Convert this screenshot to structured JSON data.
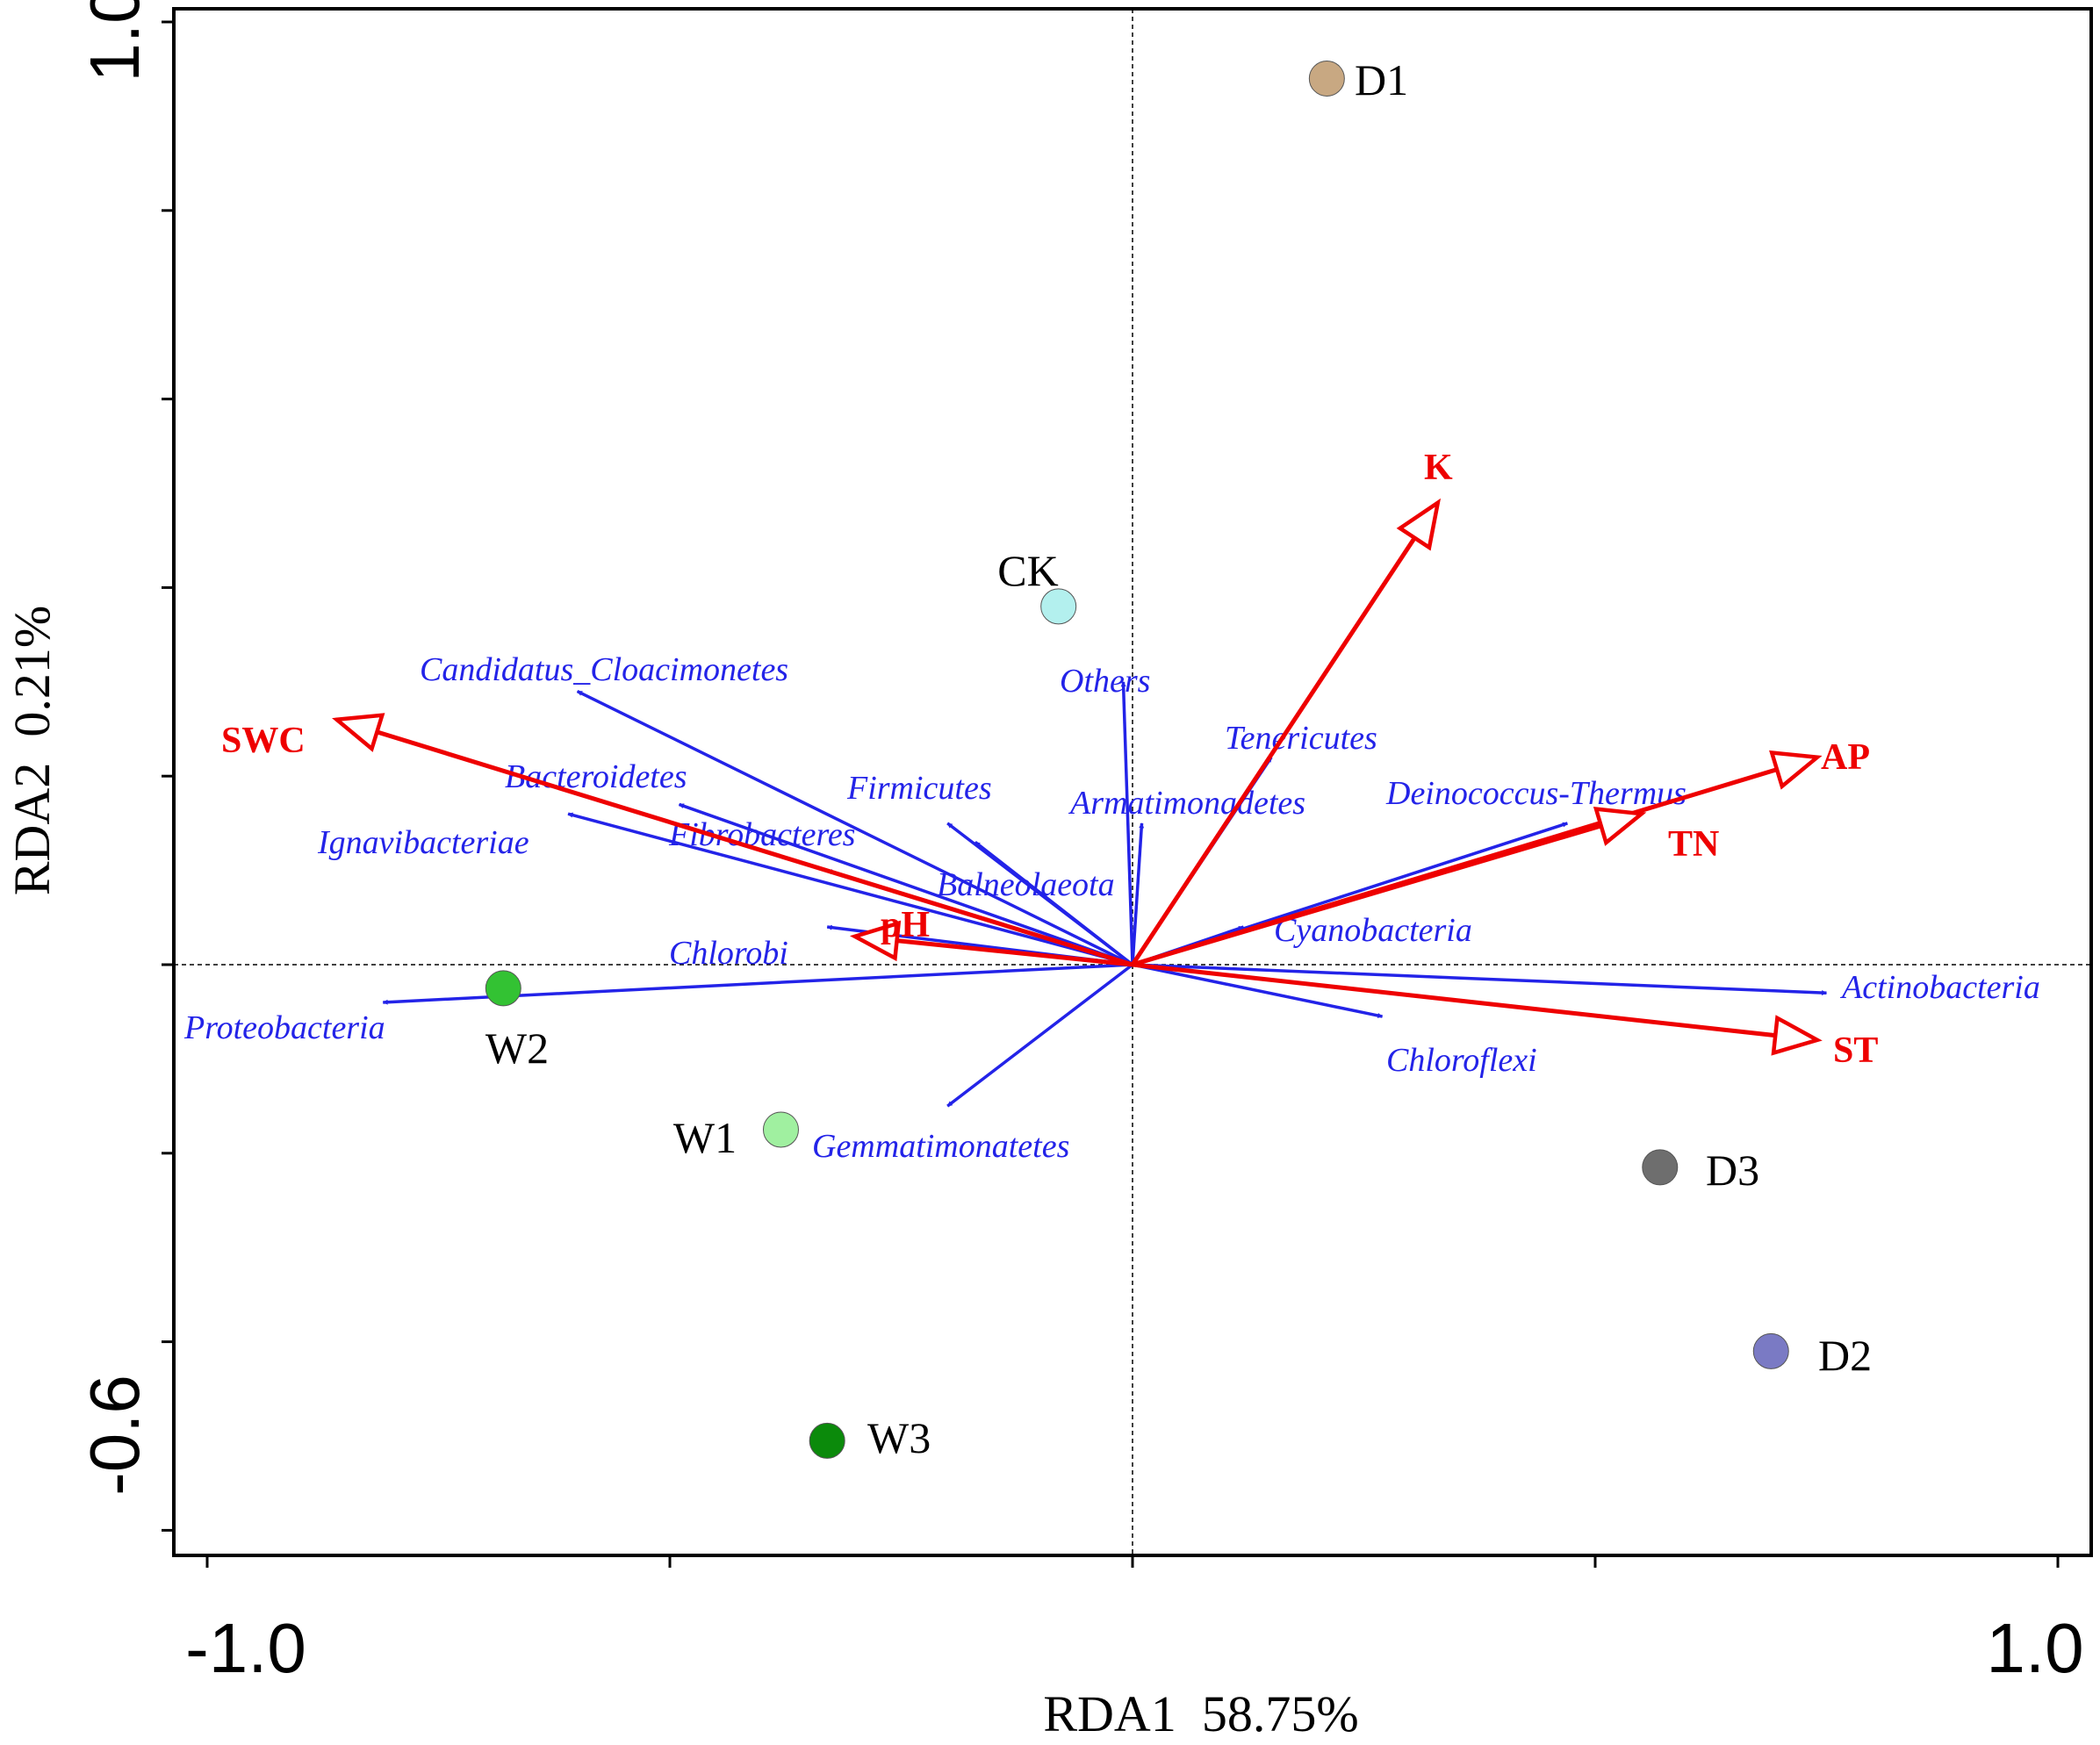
{
  "chart_data": {
    "type": "scatter",
    "subtype": "rda-biplot",
    "xlabel": "RDA1  58.75%",
    "ylabel": "RDA2  0.21%",
    "xlim": [
      -1.0,
      1.0
    ],
    "ylim": [
      -0.6,
      1.0
    ],
    "x_tick_labels": [
      {
        "value": -1.0,
        "label": "-1.0"
      },
      {
        "value": 1.0,
        "label": "1.0"
      }
    ],
    "y_tick_labels": [
      {
        "value": 1.0,
        "label": "1.0"
      },
      {
        "value": -0.6,
        "label": "-0.6"
      }
    ],
    "x_ticks": [
      -1.0,
      -0.5,
      0.0,
      0.5,
      1.0
    ],
    "y_ticks": [
      1.0,
      0.8,
      0.6,
      0.4,
      0.2,
      0.0,
      -0.2,
      -0.4,
      -0.6
    ],
    "reference_lines": {
      "x": 0,
      "y": 0
    },
    "species_arrows": [
      {
        "name": "Candidatus_Cloacimonetes",
        "x": -0.6,
        "y": 0.29
      },
      {
        "name": "Bacteroidetes",
        "x": -0.49,
        "y": 0.17
      },
      {
        "name": "Ignavibacteriae",
        "x": -0.61,
        "y": 0.16
      },
      {
        "name": "Fibrobacteres",
        "x": -0.33,
        "y": 0.1
      },
      {
        "name": "Firmicutes",
        "x": -0.2,
        "y": 0.15
      },
      {
        "name": "Balneolaeota",
        "x": -0.17,
        "y": 0.13
      },
      {
        "name": "Chlorobi",
        "x": -0.33,
        "y": 0.04
      },
      {
        "name": "Proteobacteria",
        "x": -0.81,
        "y": -0.04
      },
      {
        "name": "Gemmatimonatetes",
        "x": -0.2,
        "y": -0.15
      },
      {
        "name": "Others",
        "x": -0.01,
        "y": 0.3
      },
      {
        "name": "Armatimonadetes",
        "x": 0.01,
        "y": 0.15
      },
      {
        "name": "Tenericutes",
        "x": 0.15,
        "y": 0.22
      },
      {
        "name": "Deinococcus-Thermus",
        "x": 0.47,
        "y": 0.15
      },
      {
        "name": "Cyanobacteria",
        "x": 0.12,
        "y": 0.04
      },
      {
        "name": "Actinobacteria",
        "x": 0.75,
        "y": -0.03
      },
      {
        "name": "Chloroflexi",
        "x": 0.27,
        "y": -0.055
      }
    ],
    "env_arrows": [
      {
        "name": "SWC",
        "x": -0.86,
        "y": 0.26
      },
      {
        "name": "pH",
        "x": -0.3,
        "y": 0.03
      },
      {
        "name": "K",
        "x": 0.33,
        "y": 0.49
      },
      {
        "name": "AP",
        "x": 0.74,
        "y": 0.22
      },
      {
        "name": "TN",
        "x": 0.55,
        "y": 0.16
      },
      {
        "name": "ST",
        "x": 0.74,
        "y": -0.08
      }
    ],
    "samples": [
      {
        "name": "D1",
        "x": 0.21,
        "y": 0.94,
        "color": "#c8a882"
      },
      {
        "name": "CK",
        "x": -0.08,
        "y": 0.38,
        "color": "#b3f0ee"
      },
      {
        "name": "W2",
        "x": -0.68,
        "y": -0.025,
        "color": "#33c233"
      },
      {
        "name": "W1",
        "x": -0.38,
        "y": -0.175,
        "color": "#a0f0a0"
      },
      {
        "name": "W3",
        "x": -0.33,
        "y": -0.505,
        "color": "#0b8a0b"
      },
      {
        "name": "D3",
        "x": 0.57,
        "y": -0.215,
        "color": "#6e6e6e"
      },
      {
        "name": "D2",
        "x": 0.69,
        "y": -0.41,
        "color": "#7a7ac4"
      }
    ]
  },
  "colors": {
    "species": "#2323e8",
    "env": "#ee0000",
    "axes": "#000000"
  }
}
